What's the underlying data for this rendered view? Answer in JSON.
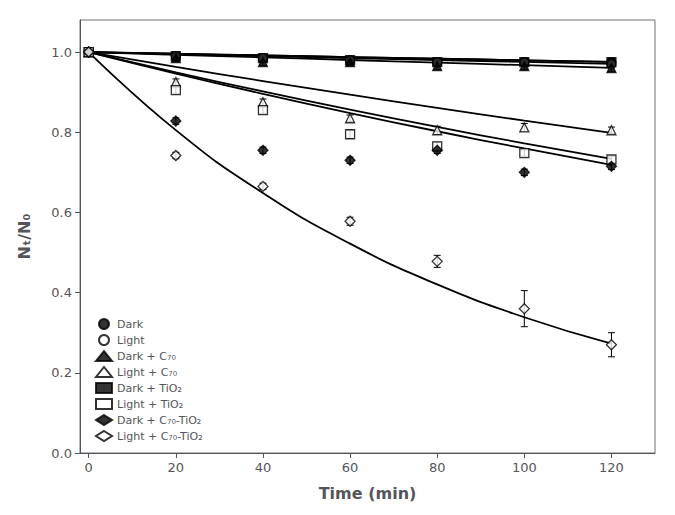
{
  "chart_data": {
    "type": "scatter",
    "xlabel": "Time (min)",
    "ylabel": "Nₜ/N₀",
    "x": [
      0,
      20,
      40,
      60,
      80,
      100,
      120
    ],
    "xlim": [
      -2,
      130
    ],
    "ylim": [
      0.0,
      1.08
    ],
    "xticks": [
      0,
      20,
      40,
      60,
      80,
      100,
      120
    ],
    "yticks": [
      {
        "value": 0,
        "label": "0.0"
      },
      0.2,
      0.4,
      0.6,
      0.8,
      {
        "value": 1,
        "label": "1.0"
      }
    ],
    "grid": false,
    "legend": "lower left",
    "series": [
      {
        "name": "Dark",
        "color": "#000000",
        "marker": "circle",
        "values": [
          1.0,
          0.99,
          0.985,
          0.98,
          0.975,
          0.975,
          0.975
        ],
        "yerr": [
          0.005,
          0.008,
          0.008,
          0.008,
          0.008,
          0.008,
          0.008
        ],
        "fit": [
          1.0,
          0.99585,
          0.99171,
          0.9876,
          0.9835,
          0.97941,
          0.97535
        ]
      },
      {
        "name": "Light",
        "color": "#000000",
        "marker": "circle_open",
        "values": [
          1.0,
          0.99,
          0.985,
          0.98,
          0.975,
          0.975,
          0.97
        ],
        "yerr": [
          0.005,
          0.008,
          0.008,
          0.008,
          0.008,
          0.008,
          0.008
        ],
        "fit": [
          1.0,
          0.99501,
          0.99005,
          0.98511,
          0.9802,
          0.97531,
          0.97045
        ]
      },
      {
        "name": "Dark + C₇₀",
        "color": "#000000",
        "marker": "triangle",
        "values": [
          1.0,
          0.985,
          0.975,
          0.975,
          0.965,
          0.965,
          0.96
        ],
        "yerr": [
          0.005,
          0.008,
          0.008,
          0.008,
          0.008,
          0.008,
          0.008
        ],
        "fit": [
          1.0,
          0.99336,
          0.98677,
          0.98022,
          0.97371,
          0.96725,
          0.96083
        ]
      },
      {
        "name": "Light + C₇₀",
        "color": "#000000",
        "marker": "triangle_open",
        "values": [
          1.0,
          0.925,
          0.875,
          0.835,
          0.805,
          0.812,
          0.805
        ],
        "yerr": [
          0.005,
          0.008,
          0.008,
          0.008,
          0.01,
          0.01,
          0.008
        ],
        "fit": [
          1.0,
          0.96319,
          0.92774,
          0.8936,
          0.86071,
          0.82903,
          0.79852
        ]
      },
      {
        "name": "Dark + TiO₂",
        "color": "#000000",
        "marker": "square",
        "values": [
          1.0,
          0.99,
          0.985,
          0.98,
          0.975,
          0.975,
          0.975
        ],
        "yerr": [
          0.005,
          0.008,
          0.008,
          0.008,
          0.008,
          0.008,
          0.008
        ],
        "fit": [
          1.0,
          0.99585,
          0.99171,
          0.9876,
          0.9835,
          0.97941,
          0.97535
        ]
      },
      {
        "name": "Light + TiO₂",
        "color": "#000000",
        "marker": "square_open",
        "values": [
          1.0,
          0.905,
          0.855,
          0.795,
          0.765,
          0.748,
          0.732
        ],
        "yerr": [
          0.005,
          0.008,
          0.008,
          0.01,
          0.01,
          0.008,
          0.008
        ],
        "fit": [
          1.0,
          0.94965,
          0.90184,
          0.85643,
          0.81331,
          0.77236,
          0.73348
        ]
      },
      {
        "name": "Dark + C₇₀-TiO₂",
        "color": "#000000",
        "marker": "diamond",
        "values": [
          1.0,
          0.828,
          0.755,
          0.73,
          0.755,
          0.7,
          0.715
        ],
        "yerr": [
          0.005,
          0.008,
          0.008,
          0.008,
          0.008,
          0.008,
          0.008
        ],
        "fit": [
          1.0,
          0.94648,
          0.89583,
          0.84789,
          0.80252,
          0.75957,
          0.71892
        ]
      },
      {
        "name": "Light + C₇₀-TiO₂",
        "color": "#000000",
        "marker": "diamond_open",
        "values": [
          1.0,
          0.742,
          0.665,
          0.578,
          0.478,
          0.36,
          0.27
        ],
        "yerr": [
          0.005,
          0.008,
          0.008,
          0.01,
          0.015,
          0.045,
          0.03
        ],
        "fit": [
          1.0,
          0.80525,
          0.64843,
          0.52215,
          0.42046,
          0.33858,
          0.27264
        ]
      }
    ]
  }
}
